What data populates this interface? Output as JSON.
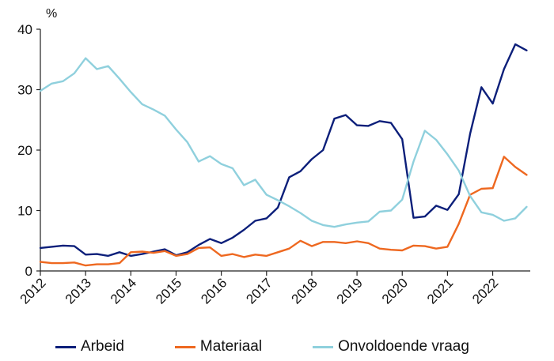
{
  "chart_data": {
    "type": "line",
    "unit_label": "%",
    "ylim": [
      0,
      40
    ],
    "yticks": [
      0,
      10,
      20,
      30,
      40
    ],
    "xlim": [
      2012,
      2022.83
    ],
    "xticks": [
      "2012",
      "2013",
      "2014",
      "2015",
      "2016",
      "2017",
      "2018",
      "2019",
      "2020",
      "2021",
      "2022"
    ],
    "grid": false,
    "legend_position": "bottom",
    "x": [
      2012.0,
      2012.25,
      2012.5,
      2012.75,
      2013.0,
      2013.25,
      2013.5,
      2013.75,
      2014.0,
      2014.25,
      2014.5,
      2014.75,
      2015.0,
      2015.25,
      2015.5,
      2015.75,
      2016.0,
      2016.25,
      2016.5,
      2016.75,
      2017.0,
      2017.25,
      2017.5,
      2017.75,
      2018.0,
      2018.25,
      2018.5,
      2018.75,
      2019.0,
      2019.25,
      2019.5,
      2019.75,
      2020.0,
      2020.25,
      2020.5,
      2020.75,
      2021.0,
      2021.25,
      2021.5,
      2021.75,
      2022.0,
      2022.25,
      2022.5,
      2022.75
    ],
    "series": [
      {
        "name": "Arbeid",
        "color": "#0c1f7a",
        "values": [
          3.8,
          4.0,
          4.2,
          4.1,
          2.7,
          2.8,
          2.5,
          3.1,
          2.5,
          2.8,
          3.2,
          3.6,
          2.6,
          3.1,
          4.3,
          5.3,
          4.6,
          5.5,
          6.8,
          8.3,
          8.7,
          10.5,
          15.5,
          16.5,
          18.5,
          20.0,
          25.2,
          25.8,
          24.1,
          24.0,
          24.8,
          24.5,
          21.8,
          8.8,
          9.0,
          10.8,
          10.1,
          12.7,
          22.7,
          30.4,
          27.7,
          33.4,
          37.5,
          36.5
        ]
      },
      {
        "name": "Materiaal",
        "color": "#ee6820",
        "values": [
          1.5,
          1.3,
          1.3,
          1.4,
          0.9,
          1.1,
          1.1,
          1.3,
          3.1,
          3.2,
          3.0,
          3.3,
          2.5,
          2.8,
          3.8,
          3.9,
          2.5,
          2.8,
          2.3,
          2.7,
          2.5,
          3.1,
          3.7,
          5.0,
          4.1,
          4.8,
          4.8,
          4.6,
          4.9,
          4.6,
          3.7,
          3.5,
          3.4,
          4.2,
          4.1,
          3.7,
          4.0,
          7.8,
          12.6,
          13.6,
          13.7,
          18.9,
          17.2,
          15.9
        ]
      },
      {
        "name": "Onvoldoende vraag",
        "color": "#8fd0dd",
        "values": [
          29.8,
          31.0,
          31.4,
          32.7,
          35.2,
          33.4,
          33.9,
          31.8,
          29.6,
          27.6,
          26.7,
          25.7,
          23.4,
          21.3,
          18.1,
          19.0,
          17.7,
          17.0,
          14.2,
          15.1,
          12.6,
          11.7,
          10.7,
          9.6,
          8.3,
          7.6,
          7.3,
          7.7,
          8.0,
          8.2,
          9.8,
          10.0,
          11.8,
          18.1,
          23.2,
          21.7,
          19.3,
          16.6,
          12.4,
          9.7,
          9.3,
          8.3,
          8.7,
          10.6
        ]
      }
    ]
  }
}
